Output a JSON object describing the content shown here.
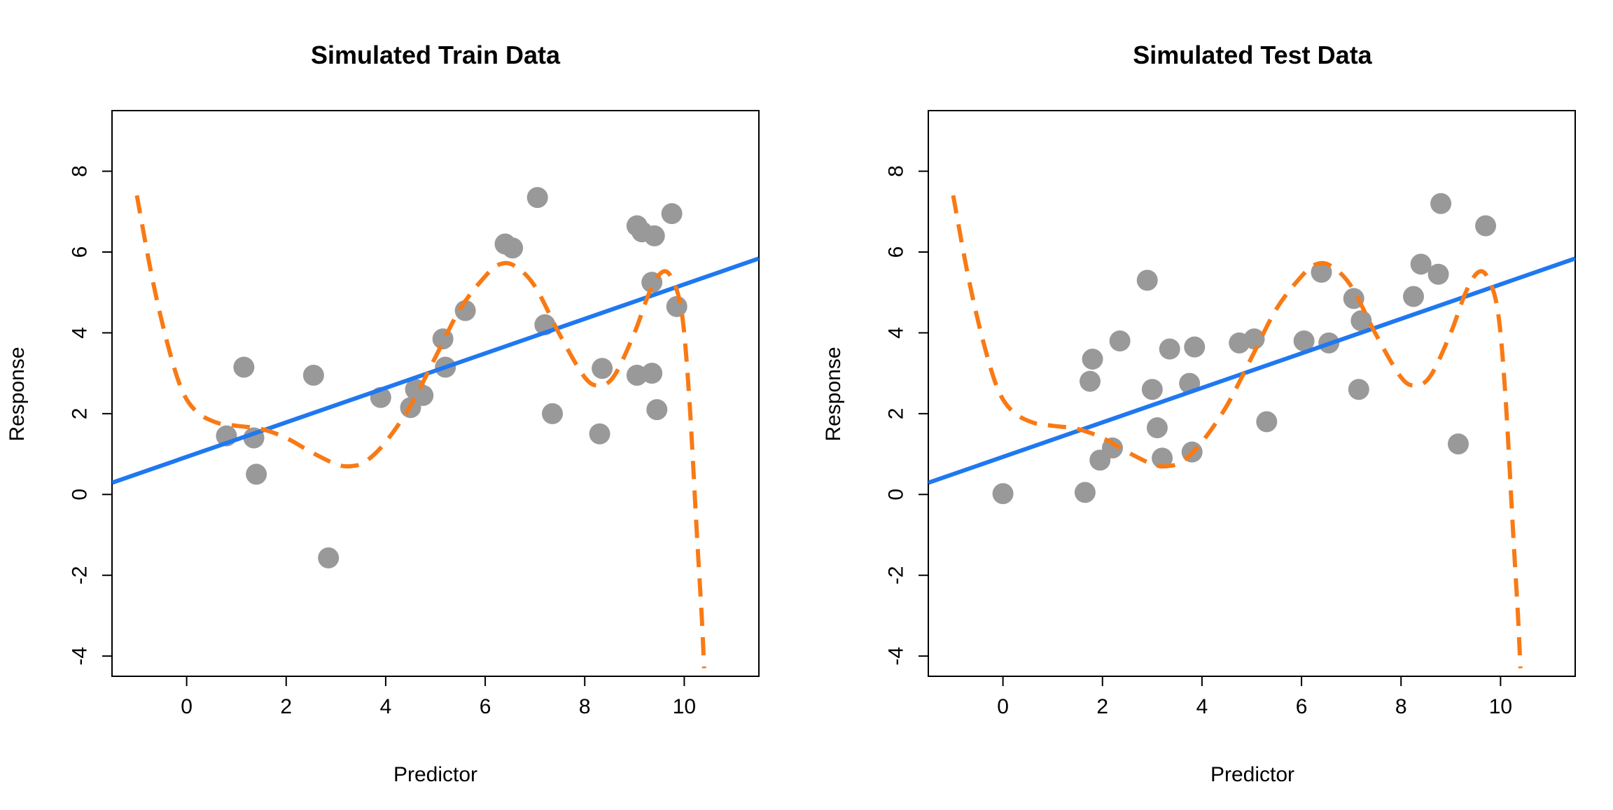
{
  "colors": {
    "points": "#999999",
    "linear_fit": "#1f78f0",
    "poly_fit": "#f97a14",
    "frame": "#000000"
  },
  "chart_data": [
    {
      "type": "scatter",
      "title": "Simulated Train Data",
      "xlabel": "Predictor",
      "ylabel": "Response",
      "xlim": [
        -1.5,
        11.5
      ],
      "ylim": [
        -4.5,
        9.5
      ],
      "xticks": [
        0,
        2,
        4,
        6,
        8,
        10
      ],
      "yticks": [
        -4,
        -2,
        0,
        2,
        4,
        6,
        8
      ],
      "xtick_labels": [
        "0",
        "2",
        "4",
        "6",
        "8",
        "10"
      ],
      "ytick_labels": [
        "-4",
        "-2",
        "0",
        "2",
        "4",
        "6",
        "8"
      ],
      "grid": false,
      "points": [
        {
          "x": 0.8,
          "y": 1.45
        },
        {
          "x": 1.15,
          "y": 3.15
        },
        {
          "x": 1.35,
          "y": 1.4
        },
        {
          "x": 1.4,
          "y": 0.5
        },
        {
          "x": 2.55,
          "y": 2.95
        },
        {
          "x": 2.85,
          "y": -1.57
        },
        {
          "x": 3.9,
          "y": 2.4
        },
        {
          "x": 4.5,
          "y": 2.15
        },
        {
          "x": 4.6,
          "y": 2.6
        },
        {
          "x": 4.75,
          "y": 2.45
        },
        {
          "x": 5.15,
          "y": 3.85
        },
        {
          "x": 5.2,
          "y": 3.15
        },
        {
          "x": 5.6,
          "y": 4.55
        },
        {
          "x": 6.4,
          "y": 6.2
        },
        {
          "x": 6.55,
          "y": 6.1
        },
        {
          "x": 7.05,
          "y": 7.35
        },
        {
          "x": 7.2,
          "y": 4.2
        },
        {
          "x": 7.35,
          "y": 2.0
        },
        {
          "x": 8.3,
          "y": 1.5
        },
        {
          "x": 8.35,
          "y": 3.12
        },
        {
          "x": 9.05,
          "y": 2.95
        },
        {
          "x": 9.05,
          "y": 6.65
        },
        {
          "x": 9.15,
          "y": 6.5
        },
        {
          "x": 9.35,
          "y": 3.0
        },
        {
          "x": 9.35,
          "y": 5.25
        },
        {
          "x": 9.4,
          "y": 6.4
        },
        {
          "x": 9.45,
          "y": 2.1
        },
        {
          "x": 9.75,
          "y": 6.95
        },
        {
          "x": 9.85,
          "y": 4.65
        }
      ],
      "linear_fit": {
        "intercept": 0.93,
        "slope": 0.427
      },
      "poly_fit": [
        {
          "x": -1.0,
          "y": 7.4
        },
        {
          "x": -0.7,
          "y": 5.4
        },
        {
          "x": -0.4,
          "y": 3.8
        },
        {
          "x": -0.1,
          "y": 2.6
        },
        {
          "x": 0.2,
          "y": 2.05
        },
        {
          "x": 0.6,
          "y": 1.78
        },
        {
          "x": 1.0,
          "y": 1.7
        },
        {
          "x": 1.5,
          "y": 1.62
        },
        {
          "x": 2.0,
          "y": 1.4
        },
        {
          "x": 2.5,
          "y": 1.05
        },
        {
          "x": 3.0,
          "y": 0.75
        },
        {
          "x": 3.3,
          "y": 0.7
        },
        {
          "x": 3.6,
          "y": 0.82
        },
        {
          "x": 4.0,
          "y": 1.3
        },
        {
          "x": 4.5,
          "y": 2.2
        },
        {
          "x": 5.0,
          "y": 3.4
        },
        {
          "x": 5.5,
          "y": 4.6
        },
        {
          "x": 6.0,
          "y": 5.4
        },
        {
          "x": 6.3,
          "y": 5.7
        },
        {
          "x": 6.6,
          "y": 5.65
        },
        {
          "x": 7.0,
          "y": 5.15
        },
        {
          "x": 7.5,
          "y": 3.95
        },
        {
          "x": 8.0,
          "y": 2.9
        },
        {
          "x": 8.3,
          "y": 2.7
        },
        {
          "x": 8.6,
          "y": 2.95
        },
        {
          "x": 9.0,
          "y": 4.0
        },
        {
          "x": 9.3,
          "y": 5.0
        },
        {
          "x": 9.55,
          "y": 5.5
        },
        {
          "x": 9.75,
          "y": 5.35
        },
        {
          "x": 9.95,
          "y": 4.5
        },
        {
          "x": 10.1,
          "y": 2.4
        },
        {
          "x": 10.25,
          "y": -0.9
        },
        {
          "x": 10.35,
          "y": -3.0
        },
        {
          "x": 10.4,
          "y": -4.3
        }
      ]
    },
    {
      "type": "scatter",
      "title": "Simulated Test Data",
      "xlabel": "Predictor",
      "ylabel": "Response",
      "xlim": [
        -1.5,
        11.5
      ],
      "ylim": [
        -4.5,
        9.5
      ],
      "xticks": [
        0,
        2,
        4,
        6,
        8,
        10
      ],
      "yticks": [
        -4,
        -2,
        0,
        2,
        4,
        6,
        8
      ],
      "xtick_labels": [
        "0",
        "2",
        "4",
        "6",
        "8",
        "10"
      ],
      "ytick_labels": [
        "-4",
        "-2",
        "0",
        "2",
        "4",
        "6",
        "8"
      ],
      "grid": false,
      "points": [
        {
          "x": 0.0,
          "y": 0.02
        },
        {
          "x": 1.65,
          "y": 0.05
        },
        {
          "x": 1.75,
          "y": 2.8
        },
        {
          "x": 1.8,
          "y": 3.35
        },
        {
          "x": 1.95,
          "y": 0.85
        },
        {
          "x": 2.2,
          "y": 1.15
        },
        {
          "x": 2.35,
          "y": 3.8
        },
        {
          "x": 2.9,
          "y": 5.3
        },
        {
          "x": 3.0,
          "y": 2.6
        },
        {
          "x": 3.1,
          "y": 1.65
        },
        {
          "x": 3.2,
          "y": 0.9
        },
        {
          "x": 3.35,
          "y": 3.6
        },
        {
          "x": 3.75,
          "y": 2.75
        },
        {
          "x": 3.8,
          "y": 1.05
        },
        {
          "x": 3.85,
          "y": 3.65
        },
        {
          "x": 4.75,
          "y": 3.75
        },
        {
          "x": 5.05,
          "y": 3.85
        },
        {
          "x": 5.3,
          "y": 1.8
        },
        {
          "x": 6.05,
          "y": 3.8
        },
        {
          "x": 6.4,
          "y": 5.5
        },
        {
          "x": 6.55,
          "y": 3.75
        },
        {
          "x": 7.05,
          "y": 4.85
        },
        {
          "x": 7.15,
          "y": 2.6
        },
        {
          "x": 7.2,
          "y": 4.3
        },
        {
          "x": 8.25,
          "y": 4.9
        },
        {
          "x": 8.4,
          "y": 5.7
        },
        {
          "x": 8.75,
          "y": 5.45
        },
        {
          "x": 8.8,
          "y": 7.2
        },
        {
          "x": 9.15,
          "y": 1.25
        },
        {
          "x": 9.7,
          "y": 6.65
        }
      ],
      "linear_fit": {
        "intercept": 0.93,
        "slope": 0.427
      },
      "poly_fit": [
        {
          "x": -1.0,
          "y": 7.4
        },
        {
          "x": -0.7,
          "y": 5.4
        },
        {
          "x": -0.4,
          "y": 3.8
        },
        {
          "x": -0.1,
          "y": 2.6
        },
        {
          "x": 0.2,
          "y": 2.05
        },
        {
          "x": 0.6,
          "y": 1.78
        },
        {
          "x": 1.0,
          "y": 1.7
        },
        {
          "x": 1.5,
          "y": 1.62
        },
        {
          "x": 2.0,
          "y": 1.4
        },
        {
          "x": 2.5,
          "y": 1.05
        },
        {
          "x": 3.0,
          "y": 0.75
        },
        {
          "x": 3.3,
          "y": 0.7
        },
        {
          "x": 3.6,
          "y": 0.82
        },
        {
          "x": 4.0,
          "y": 1.3
        },
        {
          "x": 4.5,
          "y": 2.2
        },
        {
          "x": 5.0,
          "y": 3.4
        },
        {
          "x": 5.5,
          "y": 4.6
        },
        {
          "x": 6.0,
          "y": 5.4
        },
        {
          "x": 6.3,
          "y": 5.7
        },
        {
          "x": 6.6,
          "y": 5.65
        },
        {
          "x": 7.0,
          "y": 5.15
        },
        {
          "x": 7.5,
          "y": 3.95
        },
        {
          "x": 8.0,
          "y": 2.9
        },
        {
          "x": 8.3,
          "y": 2.7
        },
        {
          "x": 8.6,
          "y": 2.95
        },
        {
          "x": 9.0,
          "y": 4.0
        },
        {
          "x": 9.3,
          "y": 5.0
        },
        {
          "x": 9.55,
          "y": 5.5
        },
        {
          "x": 9.75,
          "y": 5.35
        },
        {
          "x": 9.95,
          "y": 4.5
        },
        {
          "x": 10.1,
          "y": 2.4
        },
        {
          "x": 10.25,
          "y": -0.9
        },
        {
          "x": 10.35,
          "y": -3.0
        },
        {
          "x": 10.4,
          "y": -4.3
        }
      ]
    }
  ]
}
